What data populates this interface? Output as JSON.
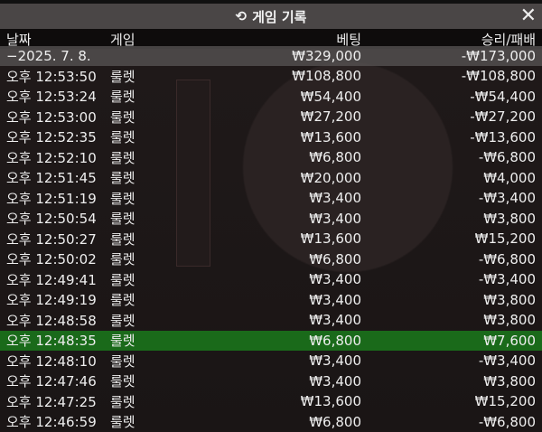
{
  "title": "게임 기록",
  "icons": {
    "title": "history-icon",
    "close": "close-icon"
  },
  "columns": {
    "date": "날짜",
    "game": "게임",
    "bet": "베팅",
    "result": "승리/패배"
  },
  "total": {
    "date": "−2025. 7. 8.",
    "bet": "₩329,000",
    "result": "-₩173,000"
  },
  "highlight_color": "#1a6a1a",
  "rows": [
    {
      "time": "오후 12:53:50",
      "game": "룰렛",
      "bet": "₩108,800",
      "result": "-₩108,800"
    },
    {
      "time": "오후 12:53:24",
      "game": "룰렛",
      "bet": "₩54,400",
      "result": "-₩54,400"
    },
    {
      "time": "오후 12:53:00",
      "game": "룰렛",
      "bet": "₩27,200",
      "result": "-₩27,200"
    },
    {
      "time": "오후 12:52:35",
      "game": "룰렛",
      "bet": "₩13,600",
      "result": "-₩13,600"
    },
    {
      "time": "오후 12:52:10",
      "game": "룰렛",
      "bet": "₩6,800",
      "result": "-₩6,800"
    },
    {
      "time": "오후 12:51:45",
      "game": "룰렛",
      "bet": "₩20,000",
      "result": "₩4,000"
    },
    {
      "time": "오후 12:51:19",
      "game": "룰렛",
      "bet": "₩3,400",
      "result": "-₩3,400"
    },
    {
      "time": "오후 12:50:54",
      "game": "룰렛",
      "bet": "₩3,400",
      "result": "₩3,800"
    },
    {
      "time": "오후 12:50:27",
      "game": "룰렛",
      "bet": "₩13,600",
      "result": "₩15,200"
    },
    {
      "time": "오후 12:50:02",
      "game": "룰렛",
      "bet": "₩6,800",
      "result": "-₩6,800"
    },
    {
      "time": "오후 12:49:41",
      "game": "룰렛",
      "bet": "₩3,400",
      "result": "-₩3,400"
    },
    {
      "time": "오후 12:49:19",
      "game": "룰렛",
      "bet": "₩3,400",
      "result": "₩3,800"
    },
    {
      "time": "오후 12:48:58",
      "game": "룰렛",
      "bet": "₩3,400",
      "result": "₩3,800"
    },
    {
      "time": "오후 12:48:35",
      "game": "룰렛",
      "bet": "₩6,800",
      "result": "₩7,600",
      "highlighted": true
    },
    {
      "time": "오후 12:48:10",
      "game": "룰렛",
      "bet": "₩3,400",
      "result": "-₩3,400"
    },
    {
      "time": "오후 12:47:46",
      "game": "룰렛",
      "bet": "₩3,400",
      "result": "₩3,800"
    },
    {
      "time": "오후 12:47:25",
      "game": "룰렛",
      "bet": "₩13,600",
      "result": "₩15,200"
    },
    {
      "time": "오후 12:46:59",
      "game": "룰렛",
      "bet": "₩6,800",
      "result": "-₩6,800"
    }
  ]
}
